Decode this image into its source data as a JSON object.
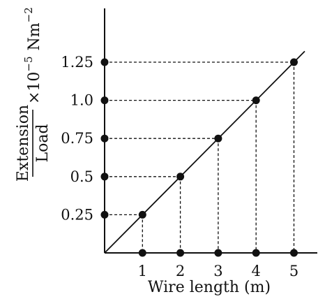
{
  "chart_data": {
    "type": "line",
    "xlabel": "Wire length (m)",
    "ylabel": {
      "numerator": "Extension",
      "denominator": "Load",
      "unit_multiplier": "×10",
      "unit_exponent": "−5",
      "unit": "Nm",
      "unit_power": "−2"
    },
    "x_ticks": [
      "1",
      "2",
      "3",
      "4",
      "5"
    ],
    "y_ticks": [
      "0.25",
      "0.5",
      "0.75",
      "1.0",
      "1.25"
    ],
    "series": [
      {
        "x": [
          1,
          2,
          3,
          4,
          5
        ],
        "y": [
          0.25,
          0.5,
          0.75,
          1.0,
          1.25
        ]
      }
    ],
    "xlim": [
      0,
      5.5
    ],
    "ylim": [
      0,
      1.6
    ],
    "grid": false,
    "guide_lines": "dashed"
  }
}
